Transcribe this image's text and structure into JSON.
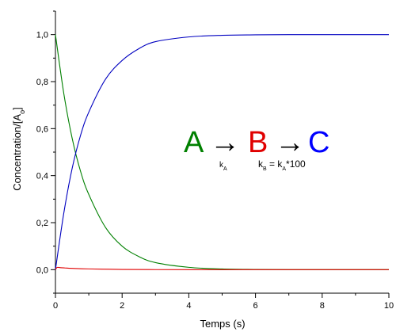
{
  "chart_data": {
    "type": "line",
    "xlabel": "Temps (s)",
    "ylabel": {
      "prefix": "Concentration/[A",
      "subscript": "o",
      "suffix": "]"
    },
    "xlim": [
      0,
      10
    ],
    "ylim": [
      -0.1,
      1.1
    ],
    "x_ticks": [
      0,
      2,
      4,
      6,
      8,
      10
    ],
    "x_tick_labels": [
      "0",
      "2",
      "4",
      "6",
      "8",
      "10"
    ],
    "y_ticks": [
      0.0,
      0.2,
      0.4,
      0.6,
      0.8,
      1.0
    ],
    "y_tick_labels": [
      "0,0",
      "0,2",
      "0,4",
      "0,6",
      "0,8",
      "1,0"
    ],
    "grid": false,
    "series": [
      {
        "color": "#008000",
        "x": [
          0,
          0.25,
          0.5,
          0.75,
          1,
          1.5,
          2,
          2.5,
          3,
          4,
          5,
          6,
          7,
          8,
          9,
          10
        ],
        "values": [
          1.0,
          0.75,
          0.56,
          0.42,
          0.32,
          0.18,
          0.1,
          0.056,
          0.03,
          0.01,
          0.003,
          0.001,
          0.0,
          0.0,
          0.0,
          0.0
        ]
      },
      {
        "color": "#0000c0",
        "x": [
          0,
          0.25,
          0.5,
          0.75,
          1,
          1.5,
          2,
          2.5,
          3,
          4,
          5,
          6,
          7,
          8,
          9,
          10
        ],
        "values": [
          0.0,
          0.24,
          0.43,
          0.57,
          0.67,
          0.81,
          0.89,
          0.94,
          0.97,
          0.99,
          0.997,
          0.999,
          1.0,
          1.0,
          1.0,
          1.0
        ]
      },
      {
        "color": "#e00000",
        "x": [
          0,
          0.05,
          0.15,
          0.3,
          0.5,
          1,
          2,
          3,
          4,
          5,
          6,
          7,
          8,
          9,
          10
        ],
        "values": [
          0.0,
          0.0095,
          0.0085,
          0.007,
          0.0055,
          0.0032,
          0.001,
          0.0003,
          0.0001,
          0.0,
          0.0,
          0.0,
          0.0,
          0.0,
          0.0
        ]
      }
    ],
    "annotation": {
      "species": [
        {
          "label": "A",
          "color": "#008000"
        },
        {
          "label": "B",
          "color": "#e00000"
        },
        {
          "label": "C",
          "color": "#0000ff"
        }
      ],
      "arrow": "→",
      "rate1": {
        "k": "k",
        "sub": "A"
      },
      "rate2": {
        "k": "k",
        "sub": "B",
        "eq": " = ",
        "k2": "k",
        "sub2": "A",
        "factor": "*100"
      }
    }
  }
}
